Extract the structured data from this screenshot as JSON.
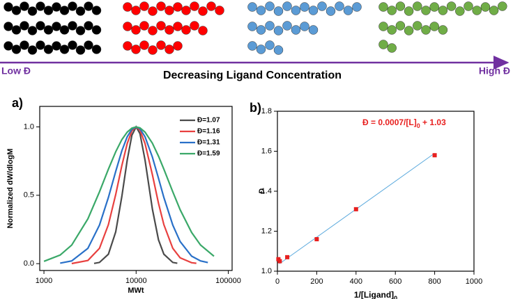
{
  "schematic": {
    "low_label": "Low Đ",
    "caption": "Decreasing Ligand Concentration",
    "high_label": "High Đ"
  },
  "chart_data": [
    {
      "type": "line",
      "panel_label": "a)",
      "xlabel": "MWt",
      "ylabel": "Normalized dW/dlogM",
      "log_x": true,
      "xlim": [
        900,
        110000
      ],
      "xticks": [
        1000,
        10000,
        100000
      ],
      "ylim": [
        -0.05,
        1.15
      ],
      "yticks": [
        {
          "value": 0,
          "label": "0.0"
        },
        0.5,
        {
          "value": 1,
          "label": "1.0"
        }
      ],
      "legend": "top-right",
      "series": [
        {
          "name": "Đ=1.07",
          "color": "#4a4a4a",
          "x": [
            3500,
            4000,
            5000,
            6000,
            7000,
            8000,
            9000,
            10000,
            11000,
            12500,
            15000,
            17500,
            20000,
            25000,
            28000
          ],
          "values": [
            0.002,
            0.009,
            0.069,
            0.232,
            0.491,
            0.757,
            0.939,
            1,
            0.951,
            0.757,
            0.4,
            0.174,
            0.069,
            0.009,
            0.003
          ]
        },
        {
          "name": "Đ=1.16",
          "color": "#e8403f",
          "x": [
            2000,
            3000,
            4000,
            5000,
            6000,
            7000,
            8000,
            9000,
            10000,
            11000,
            12500,
            15000,
            17500,
            20000,
            25000,
            30000,
            40000,
            45000
          ],
          "values": [
            0.001,
            0.023,
            0.112,
            0.285,
            0.505,
            0.717,
            0.878,
            0.971,
            1,
            0.977,
            0.878,
            0.651,
            0.441,
            0.285,
            0.112,
            0.043,
            0.007,
            0.003
          ]
        },
        {
          "name": "Đ=1.31",
          "color": "#2970c8",
          "x": [
            1500,
            2000,
            3000,
            4000,
            5000,
            6000,
            7000,
            8000,
            9000,
            10000,
            11000,
            12500,
            15000,
            17500,
            20000,
            25000,
            30000,
            40000,
            50000,
            60000
          ],
          "values": [
            0.004,
            0.02,
            0.112,
            0.282,
            0.484,
            0.674,
            0.825,
            0.928,
            0.983,
            1,
            0.987,
            0.928,
            0.78,
            0.624,
            0.484,
            0.282,
            0.162,
            0.055,
            0.02,
            0.008
          ]
        },
        {
          "name": "Đ=1.59",
          "color": "#3aa868",
          "x": [
            1000,
            1500,
            2000,
            3000,
            4000,
            5000,
            6000,
            7000,
            8000,
            9000,
            10000,
            11000,
            12500,
            15000,
            17500,
            20000,
            25000,
            30000,
            40000,
            50000,
            70000
          ],
          "values": [
            0.017,
            0.063,
            0.136,
            0.328,
            0.525,
            0.691,
            0.818,
            0.907,
            0.962,
            0.991,
            1,
            0.993,
            0.962,
            0.881,
            0.786,
            0.691,
            0.525,
            0.395,
            0.228,
            0.136,
            0.054
          ]
        }
      ]
    },
    {
      "type": "scatter",
      "panel_label": "b)",
      "xlabel": [
        "1/[Ligand]",
        "0"
      ],
      "ylabel": "Đ",
      "annotation": [
        "Đ = 0.0007/[L]",
        "0",
        " + 1.03"
      ],
      "xlim": [
        0,
        1000
      ],
      "xticks": [
        0,
        200,
        400,
        600,
        800,
        1000
      ],
      "ylim": [
        1.0,
        1.8
      ],
      "yticks": [
        {
          "value": 1.0,
          "label": "1.0"
        },
        1.2,
        1.4,
        1.6,
        {
          "value": 1.8,
          "label": "1.8"
        }
      ],
      "color": "#e8201f",
      "x": [
        5,
        12,
        50,
        200,
        400,
        800
      ],
      "values": [
        1.06,
        1.05,
        1.07,
        1.16,
        1.31,
        1.58
      ],
      "fit_line": {
        "color": "#5aa9dd",
        "x": [
          10,
          800
        ],
        "values": [
          1.037,
          1.59
        ]
      }
    }
  ]
}
